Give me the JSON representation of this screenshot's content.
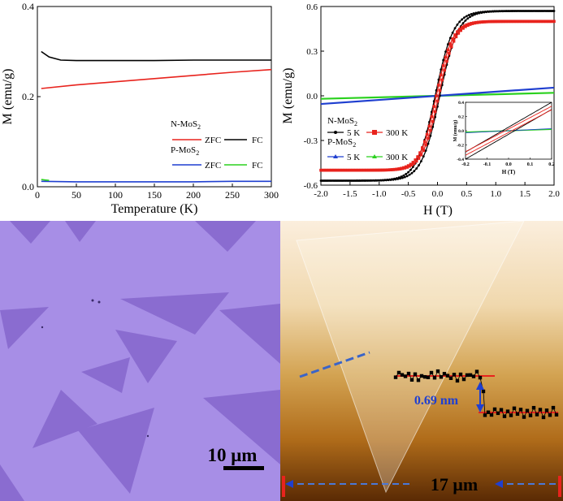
{
  "panel_a": {
    "ylabel": "M (emu/g)",
    "xlabel": "Temperature (K)",
    "xticks": [
      "0",
      "50",
      "100",
      "150",
      "200",
      "250",
      "300"
    ],
    "yticks": [
      "0.0",
      "0.2",
      "0.4"
    ],
    "legend": {
      "group1": "N-MoS2",
      "group2": "P-MoS2",
      "zfc": "ZFC",
      "fc": "FC"
    }
  },
  "panel_b": {
    "ylabel": "M (emu/g)",
    "xlabel": "H (T)",
    "xticks": [
      "-2.0",
      "-1.5",
      "-1.0",
      "-0.5",
      "0.0",
      "0.5",
      "1.0",
      "1.5",
      "2.0"
    ],
    "yticks": [
      "-0.6",
      "-0.3",
      "0.0",
      "0.3",
      "0.6"
    ],
    "legend": {
      "group1": "N-MoS2",
      "group2": "P-MoS2",
      "t5": "5 K",
      "t300": "300 K"
    },
    "inset": {
      "ylabel": "M (emu/g)",
      "xlabel": "H (T)",
      "xticks": [
        "-0.2",
        "-0.1",
        "0.0",
        "0.1",
        "0.2"
      ],
      "yticks": [
        "0.4",
        "0.2",
        "0.0",
        "-0.2",
        "-0.4"
      ]
    }
  },
  "panel_c": {
    "scale_label": "10 μm"
  },
  "panel_d": {
    "step_label": "0.69 nm",
    "width_label": "17 μm"
  },
  "colors": {
    "black": "#000000",
    "red": "#e8231d",
    "blue": "#1f3fd0",
    "green": "#2bd11f",
    "optical_bg": "#a78ee6",
    "flake": "#8a6cd0"
  },
  "chart_data": [
    {
      "type": "line",
      "title": "",
      "xlabel": "Temperature (K)",
      "ylabel": "M (emu/g)",
      "xlim": [
        0,
        300
      ],
      "ylim": [
        0,
        0.4
      ],
      "series": [
        {
          "name": "N-MoS2 ZFC",
          "x": [
            5,
            50,
            100,
            150,
            200,
            250,
            300
          ],
          "y": [
            0.218,
            0.226,
            0.233,
            0.24,
            0.247,
            0.254,
            0.26
          ]
        },
        {
          "name": "N-MoS2 FC",
          "x": [
            5,
            15,
            30,
            50,
            100,
            150,
            200,
            250,
            300
          ],
          "y": [
            0.3,
            0.288,
            0.281,
            0.28,
            0.28,
            0.28,
            0.281,
            0.281,
            0.281
          ]
        },
        {
          "name": "P-MoS2 ZFC",
          "x": [
            5,
            50,
            100,
            150,
            200,
            250,
            300
          ],
          "y": [
            0.012,
            0.011,
            0.011,
            0.011,
            0.011,
            0.012,
            0.012
          ]
        },
        {
          "name": "P-MoS2 FC",
          "x": [
            5,
            10,
            15
          ],
          "y": [
            0.016,
            0.015,
            0.014
          ]
        }
      ]
    },
    {
      "type": "line",
      "title": "",
      "xlabel": "H (T)",
      "ylabel": "M (emu/g)",
      "xlim": [
        -2,
        2
      ],
      "ylim": [
        -0.6,
        0.6
      ],
      "series": [
        {
          "name": "N-MoS2 5 K",
          "Ms": 0.57
        },
        {
          "name": "N-MoS2 300 K",
          "Ms": 0.5
        },
        {
          "name": "P-MoS2 5 K",
          "x": [
            -2,
            2
          ],
          "y": [
            -0.055,
            0.055
          ]
        },
        {
          "name": "P-MoS2 300 K",
          "x": [
            -2,
            2
          ],
          "y": [
            -0.02,
            0.02
          ]
        }
      ]
    }
  ]
}
